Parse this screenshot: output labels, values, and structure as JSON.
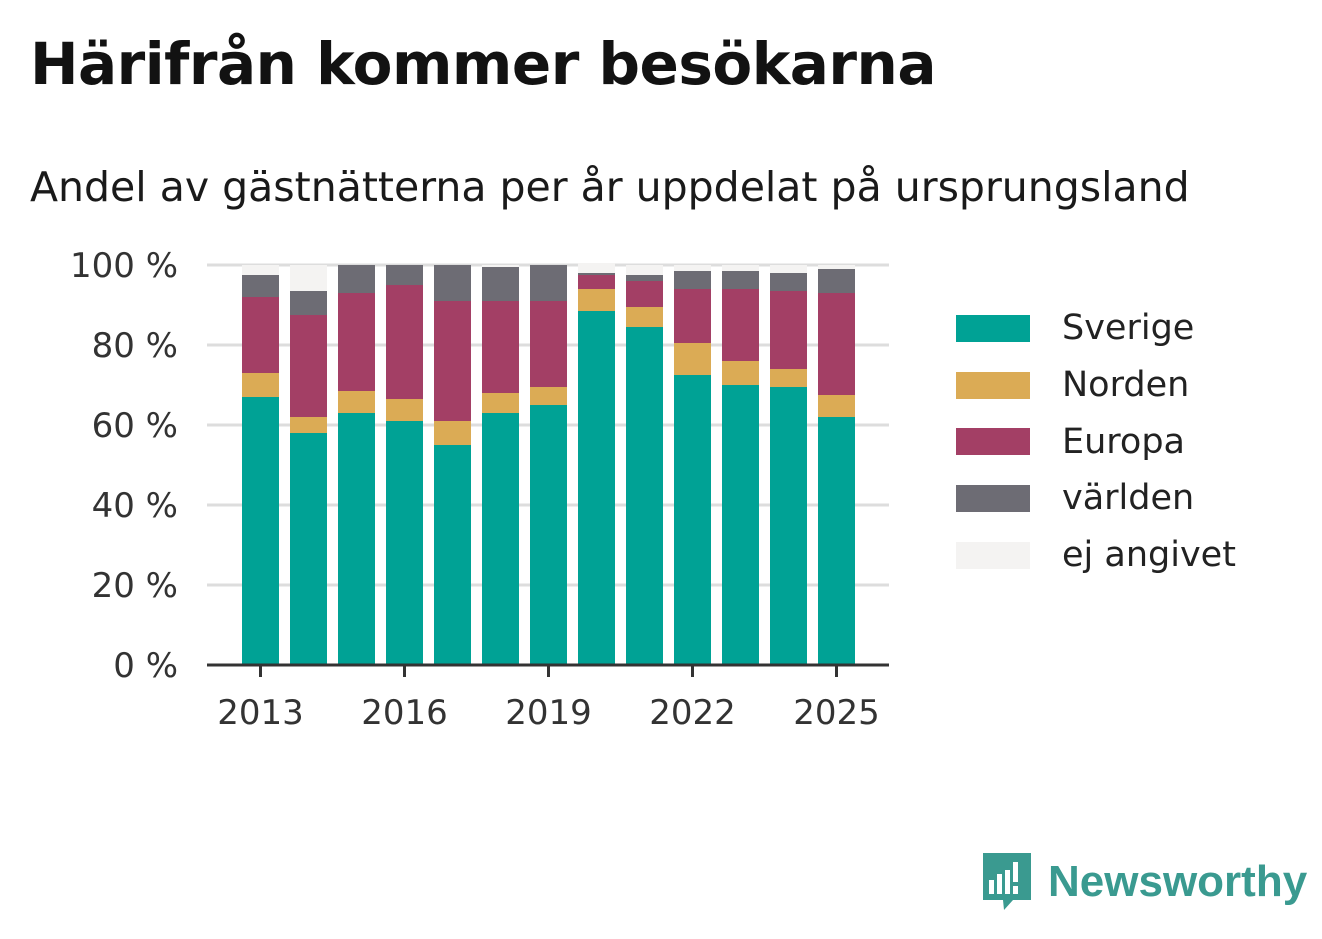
{
  "title": "Härifrån kommer besökarna",
  "subtitle": "Andel av gästnätterna per år uppdelat på ursprungsland",
  "brand": {
    "name": "Newsworthy",
    "icon": "newsworthy-logo-icon",
    "color": "#3a9a90"
  },
  "chart_data": {
    "type": "bar",
    "stacked": true,
    "categories": [
      "2013",
      "2014",
      "2015",
      "2016",
      "2017",
      "2018",
      "2019",
      "2020",
      "2021",
      "2022",
      "2023",
      "2024",
      "2025"
    ],
    "x_tick_labels": [
      "2013",
      "2016",
      "2019",
      "2022",
      "2025"
    ],
    "y_tick_labels": [
      "0 %",
      "20 %",
      "40 %",
      "60 %",
      "80 %",
      "100 %"
    ],
    "ylim": [
      0,
      100
    ],
    "grid": true,
    "legend_position": "right",
    "series": [
      {
        "name": "Sverige",
        "color": "#00a295",
        "values": [
          67,
          58,
          63,
          61,
          55,
          63,
          65,
          88.5,
          84.5,
          72.5,
          70,
          69.5,
          62
        ]
      },
      {
        "name": "Norden",
        "color": "#dbab55",
        "values": [
          6,
          4,
          5.5,
          5.5,
          6,
          5,
          4.5,
          5.5,
          5,
          8,
          6,
          4.5,
          5.5
        ]
      },
      {
        "name": "Europa",
        "color": "#a33f65",
        "values": [
          19,
          25.5,
          24.5,
          28.5,
          30,
          23,
          21.5,
          3.5,
          6.5,
          13.5,
          18,
          19.5,
          25.5
        ]
      },
      {
        "name": "världen",
        "color": "#6d6c74",
        "values": [
          5.5,
          6,
          7,
          5,
          9,
          8.5,
          9,
          0.5,
          1.5,
          4.5,
          4.5,
          4.5,
          6
        ]
      },
      {
        "name": "ej angivet",
        "color": "#f4f3f2",
        "values": [
          2.5,
          6.5,
          0,
          0,
          0,
          0.5,
          0,
          2.5,
          2.5,
          1.5,
          1.5,
          2,
          1
        ]
      }
    ]
  }
}
